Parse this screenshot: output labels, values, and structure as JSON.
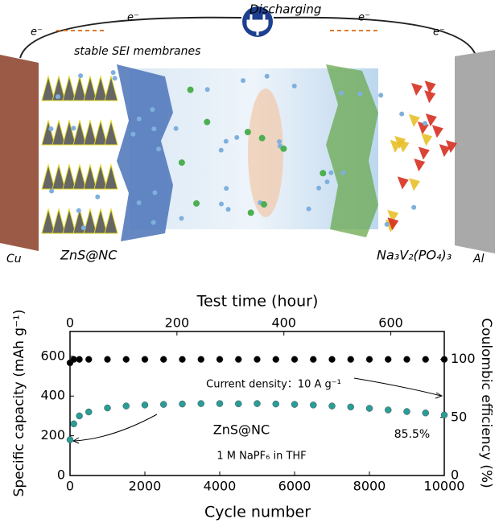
{
  "schematic": {
    "discharging": "Discharging",
    "electrons": [
      "e⁻",
      "e⁻",
      "e⁻",
      "e⁻"
    ],
    "sei": "stable SEI membranes",
    "cu": "Cu",
    "anode": "ZnS@NC",
    "cathode": "Na₃V₂(PO₄)₃",
    "al": "Al"
  },
  "chart_data": {
    "type": "scatter",
    "xlabel": "Cycle number",
    "x2label": "Test time (hour)",
    "ylabel": "Specific capacity (mAh g⁻¹)",
    "y2label": "Coulombic efficiency (%)",
    "xlim": [
      0,
      10000
    ],
    "xticks": [
      0,
      2000,
      4000,
      6000,
      8000,
      10000
    ],
    "x2lim": [
      0,
      700
    ],
    "x2ticks": [
      0,
      200,
      400,
      600
    ],
    "ylim": [
      0,
      725
    ],
    "yticks": [
      0,
      200,
      400,
      600
    ],
    "y2lim": [
      0,
      124
    ],
    "y2ticks": [
      0,
      50,
      100
    ],
    "x": [
      0,
      100,
      250,
      500,
      1000,
      1500,
      2000,
      2500,
      3000,
      3500,
      4000,
      4500,
      5000,
      5500,
      6000,
      6500,
      7000,
      7500,
      8000,
      8500,
      9000,
      9500,
      10000
    ],
    "series": [
      {
        "name": "Specific capacity",
        "color": "#2a9d96",
        "values": [
          180,
          260,
          300,
          320,
          340,
          350,
          355,
          358,
          360,
          362,
          362,
          361,
          362,
          360,
          358,
          355,
          350,
          345,
          338,
          330,
          322,
          315,
          305
        ]
      },
      {
        "name": "Coulombic efficiency",
        "color": "#000000",
        "axis": "y2",
        "values": [
          97,
          100,
          100,
          100,
          100,
          100,
          100,
          100,
          100,
          100,
          100,
          100,
          100,
          100,
          100,
          100,
          100,
          100,
          100,
          100,
          100,
          100,
          100
        ]
      }
    ],
    "annotations": [
      "Current density：10 A g⁻¹",
      "ZnS@NC",
      "1 M NaPF₆ in THF",
      "85.5%"
    ]
  }
}
